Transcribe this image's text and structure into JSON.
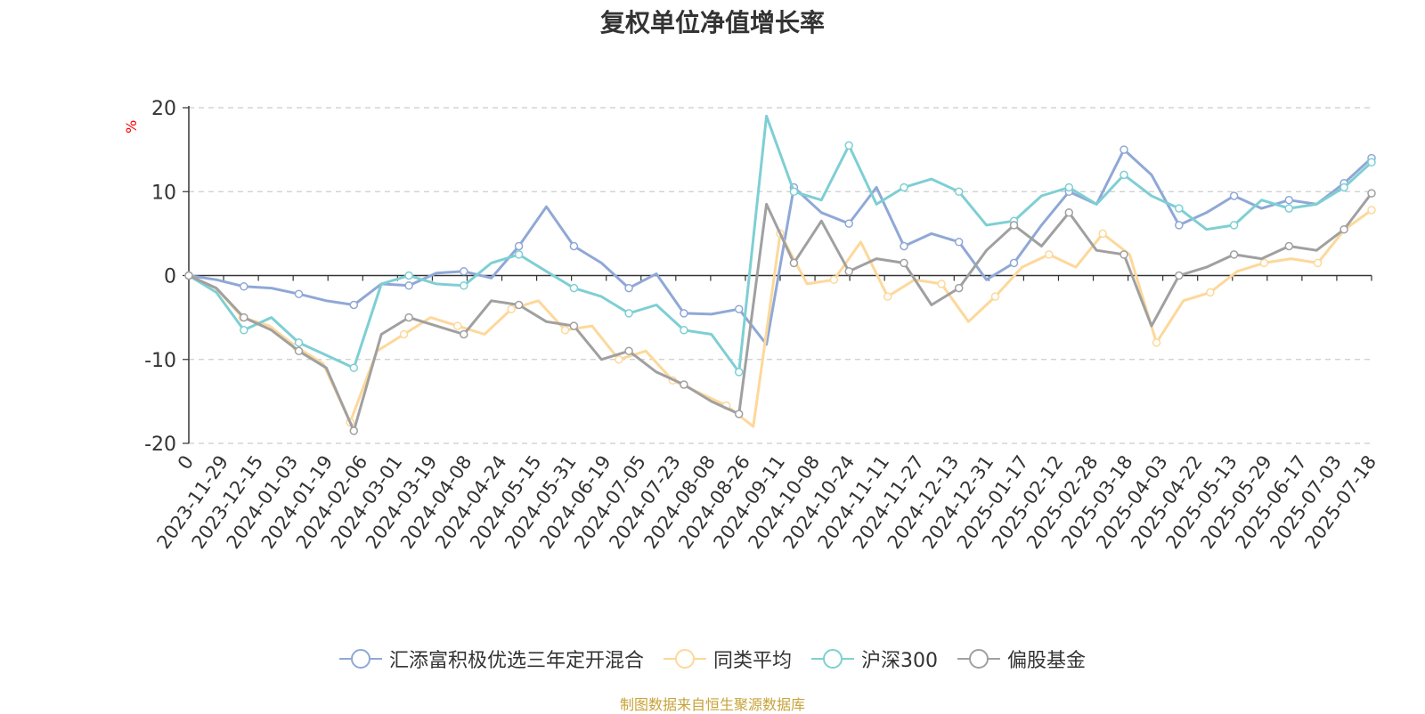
{
  "chart_data": {
    "type": "line",
    "title": "复权单位净值增长率",
    "ylabel": "%",
    "ylim": [
      -20,
      20
    ],
    "yticks": [
      20,
      10,
      0,
      -10,
      -20
    ],
    "grid": true,
    "legend_position": "bottom",
    "x_tick_labels": [
      "0",
      "2023-11-29",
      "2023-12-15",
      "2024-01-03",
      "2024-01-19",
      "2024-02-06",
      "2024-03-01",
      "2024-03-19",
      "2024-04-08",
      "2024-04-24",
      "2024-05-15",
      "2024-05-31",
      "2024-06-19",
      "2024-07-05",
      "2024-07-23",
      "2024-08-08",
      "2024-08-26",
      "2024-09-11",
      "2024-10-08",
      "2024-10-24",
      "2024-11-11",
      "2024-11-27",
      "2024-12-13",
      "2024-12-31",
      "2025-01-17",
      "2025-02-12",
      "2025-02-28",
      "2025-03-18",
      "2025-04-03",
      "2025-04-22",
      "2025-05-13",
      "2025-05-29",
      "2025-06-17",
      "2025-07-03",
      "2025-07-18"
    ],
    "series": [
      {
        "name": "汇添富积极优选三年定开混合",
        "color": "#8fa8d6",
        "values": [
          0,
          -0.5,
          -1.3,
          -1.5,
          -2.2,
          -3.0,
          -3.5,
          -1.0,
          -1.2,
          0.3,
          0.5,
          -0.3,
          3.5,
          8.2,
          3.5,
          1.5,
          -1.5,
          0.2,
          -4.5,
          -4.6,
          -4.0,
          -8.2,
          10.5,
          7.5,
          6.2,
          10.5,
          3.5,
          5.0,
          4.0,
          -0.5,
          1.5,
          6.0,
          10.0,
          8.5,
          15.0,
          12.0,
          6.0,
          7.5,
          9.5,
          8.0,
          9.0,
          8.5,
          11.0,
          14.0
        ]
      },
      {
        "name": "同类平均",
        "color": "#fdd89a",
        "values": [
          0,
          -1.5,
          -5.0,
          -6.0,
          -8.5,
          -10.5,
          -17.5,
          -9.0,
          -7.0,
          -5.0,
          -6.0,
          -7.0,
          -4.0,
          -3.0,
          -6.5,
          -6.0,
          -10.0,
          -9.0,
          -12.5,
          -14.0,
          -15.5,
          -18.0,
          5.0,
          -1.0,
          -0.5,
          4.0,
          -2.5,
          -0.5,
          -1.0,
          -5.5,
          -2.5,
          1.0,
          2.5,
          1.0,
          5.0,
          2.5,
          -8.0,
          -3.0,
          -2.0,
          0.5,
          1.5,
          2.0,
          1.5,
          5.5,
          7.8
        ]
      },
      {
        "name": "沪深300",
        "color": "#7ecfd4",
        "values": [
          0,
          -2.0,
          -6.5,
          -5.0,
          -8.0,
          -9.5,
          -11.0,
          -1.0,
          0.0,
          -1.0,
          -1.2,
          1.5,
          2.5,
          0.5,
          -1.5,
          -2.5,
          -4.5,
          -3.5,
          -6.5,
          -7.0,
          -11.5,
          19.0,
          10.0,
          9.0,
          15.5,
          8.5,
          10.5,
          11.5,
          10.0,
          6.0,
          6.5,
          9.5,
          10.5,
          8.5,
          12.0,
          9.5,
          8.0,
          5.5,
          6.0,
          9.0,
          8.0,
          8.5,
          10.5,
          13.5
        ]
      },
      {
        "name": "偏股基金",
        "color": "#a0a0a0",
        "values": [
          0,
          -1.5,
          -5.0,
          -6.5,
          -9.0,
          -11.0,
          -18.5,
          -7.0,
          -5.0,
          -6.0,
          -7.0,
          -3.0,
          -3.5,
          -5.5,
          -6.0,
          -10.0,
          -9.0,
          -11.5,
          -13.0,
          -15.0,
          -16.5,
          8.5,
          1.5,
          6.5,
          0.5,
          2.0,
          1.5,
          -3.5,
          -1.5,
          3.0,
          6.0,
          3.5,
          7.5,
          3.0,
          2.5,
          -6.0,
          0.0,
          1.0,
          2.5,
          2.0,
          3.5,
          3.0,
          5.5,
          9.8
        ]
      }
    ]
  },
  "legend": [
    {
      "label": "汇添富积极优选三年定开混合",
      "color": "#8fa8d6"
    },
    {
      "label": "同类平均",
      "color": "#fdd89a"
    },
    {
      "label": "沪深300",
      "color": "#7ecfd4"
    },
    {
      "label": "偏股基金",
      "color": "#a0a0a0"
    }
  ],
  "source_text": "制图数据来自恒生聚源数据库"
}
